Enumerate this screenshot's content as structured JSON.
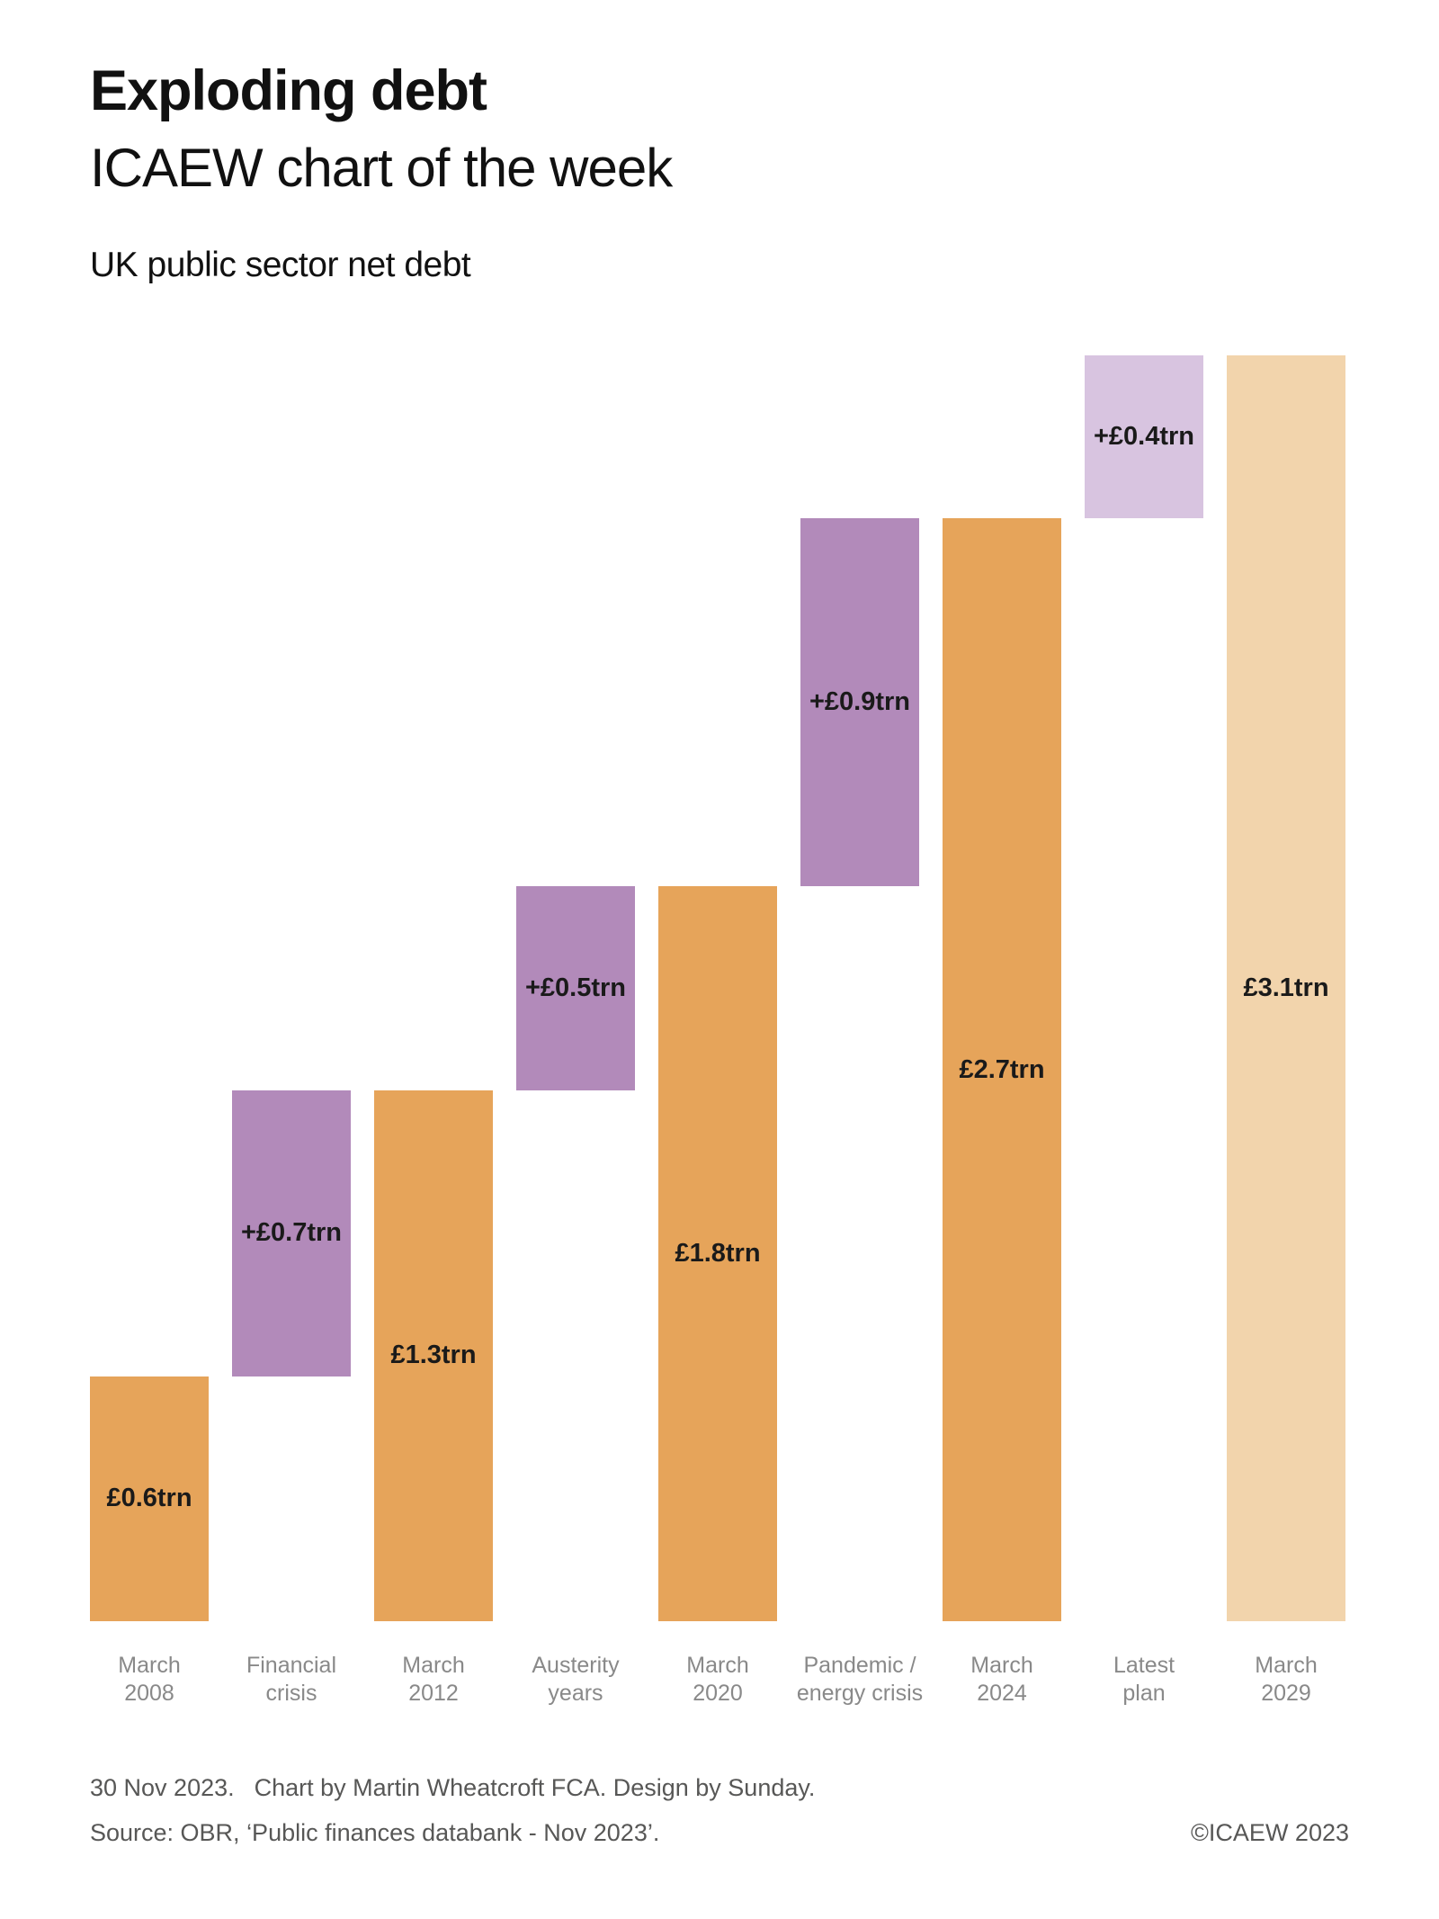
{
  "header": {
    "title": "Exploding debt",
    "subtitle": "ICAEW chart of the week",
    "chart_label": "UK public sector net debt"
  },
  "footer": {
    "date": "30 Nov 2023.",
    "credit": "Chart by Martin Wheatcroft FCA. Design by Sunday.",
    "source": "Source: OBR, ‘Public finances databank - Nov 2023’.",
    "copyright": "©ICAEW 2023"
  },
  "colors": {
    "total_bar": "#E6A45A",
    "increase_bar": "#B28ABA",
    "projected_increase_bar": "#D8C4E0",
    "projected_total_bar": "#F2D4AC",
    "value_label": "#1A1A1A",
    "axis_label": "#898989",
    "footer_text": "#575756"
  },
  "chart_data": {
    "type": "bar",
    "subtype": "waterfall",
    "title": "Exploding debt",
    "dataset_label": "UK public sector net debt",
    "unit": "£ trillion",
    "ylim": [
      0,
      3.1
    ],
    "grid": false,
    "legend": false,
    "categories": [
      "March\n2008",
      "Financial\ncrisis",
      "March\n2012",
      "Austerity\nyears",
      "March\n2020",
      "Pandemic /\nenergy crisis",
      "March\n2024",
      "Latest\nplan",
      "March\n2029"
    ],
    "bars": [
      {
        "category": "March\n2008",
        "value_label": "£0.6trn",
        "value": 0.6,
        "start": 0.0,
        "end": 0.6,
        "kind": "total"
      },
      {
        "category": "Financial\ncrisis",
        "value_label": "+£0.7trn",
        "value": 0.7,
        "start": 0.6,
        "end": 1.3,
        "kind": "increase"
      },
      {
        "category": "March\n2012",
        "value_label": "£1.3trn",
        "value": 1.3,
        "start": 0.0,
        "end": 1.3,
        "kind": "total"
      },
      {
        "category": "Austerity\nyears",
        "value_label": "+£0.5trn",
        "value": 0.5,
        "start": 1.3,
        "end": 1.8,
        "kind": "increase"
      },
      {
        "category": "March\n2020",
        "value_label": "£1.8trn",
        "value": 1.8,
        "start": 0.0,
        "end": 1.8,
        "kind": "total"
      },
      {
        "category": "Pandemic /\nenergy crisis",
        "value_label": "+£0.9trn",
        "value": 0.9,
        "start": 1.8,
        "end": 2.7,
        "kind": "increase"
      },
      {
        "category": "March\n2024",
        "value_label": "£2.7trn",
        "value": 2.7,
        "start": 0.0,
        "end": 2.7,
        "kind": "total"
      },
      {
        "category": "Latest\nplan",
        "value_label": "+£0.4trn",
        "value": 0.4,
        "start": 2.7,
        "end": 3.1,
        "kind": "projected_increase"
      },
      {
        "category": "March\n2029",
        "value_label": "£3.1trn",
        "value": 3.1,
        "start": 0.0,
        "end": 3.1,
        "kind": "projected_total"
      }
    ]
  }
}
